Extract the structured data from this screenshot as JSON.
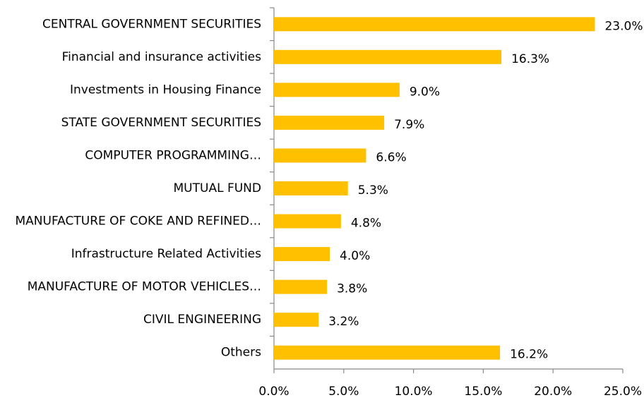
{
  "chart_data": {
    "type": "barh",
    "categories": [
      "CENTRAL GOVERNMENT SECURITIES",
      "Financial and insurance activities",
      "Investments in Housing Finance",
      "STATE GOVERNMENT SECURITIES",
      "COMPUTER PROGRAMMING…",
      "MUTUAL FUND",
      "MANUFACTURE OF COKE AND REFINED…",
      "Infrastructure Related Activities",
      "MANUFACTURE OF MOTOR VEHICLES…",
      "CIVIL ENGINEERING",
      "Others"
    ],
    "values": [
      23.0,
      16.3,
      9.0,
      7.9,
      6.6,
      5.3,
      4.8,
      4.0,
      3.8,
      3.2,
      16.2
    ],
    "value_labels": [
      "23.0%",
      "16.3%",
      "9.0%",
      "7.9%",
      "6.6%",
      "5.3%",
      "4.8%",
      "4.0%",
      "3.8%",
      "3.2%",
      "16.2%"
    ],
    "color": "#ffc000",
    "xlim": [
      0,
      25
    ],
    "xticks": [
      {
        "value": 0,
        "label": "0.0%"
      },
      {
        "value": 5,
        "label": "5.0%"
      },
      {
        "value": 10,
        "label": "10.0%"
      },
      {
        "value": 15,
        "label": "15.0%"
      },
      {
        "value": 20,
        "label": "20.0%"
      },
      {
        "value": 25,
        "label": "25.0%"
      }
    ],
    "grid": false
  }
}
